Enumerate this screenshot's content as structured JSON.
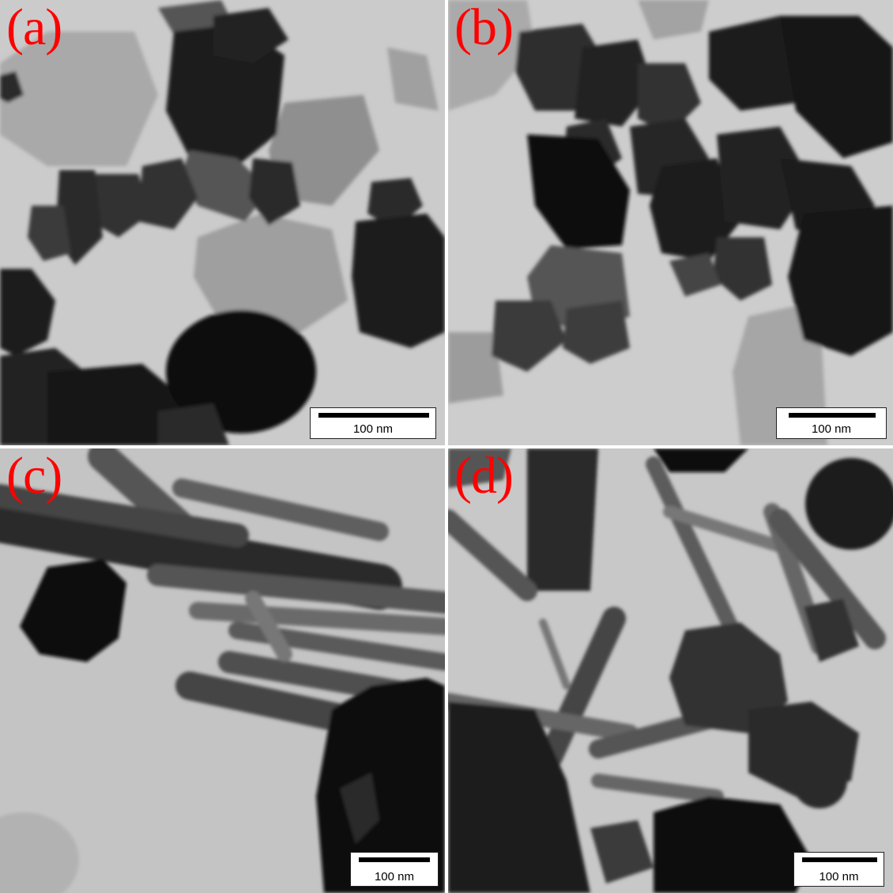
{
  "panels": [
    {
      "id": "a",
      "label": "(a)",
      "scale": "100 nm"
    },
    {
      "id": "b",
      "label": "(b)",
      "scale": "100 nm"
    },
    {
      "id": "c",
      "label": "(c)",
      "scale": "100 nm"
    },
    {
      "id": "d",
      "label": "(d)",
      "scale": "100 nm"
    }
  ],
  "colors": {
    "label": "#ff0000",
    "background": "#c9c9c9",
    "particle": "#1c1c1c"
  }
}
